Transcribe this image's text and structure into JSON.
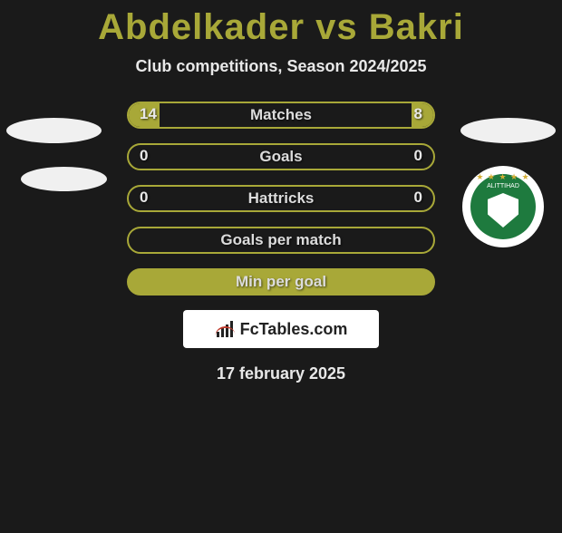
{
  "title": "Abdelkader vs Bakri",
  "subtitle": "Club competitions, Season 2024/2025",
  "date": "17 february 2025",
  "logo_text": "FcTables.com",
  "club_name": "ALITTIHAD",
  "colors": {
    "accent": "#a8a838",
    "background": "#1a1a1a",
    "text": "#e8e8e8",
    "club_green": "#1e7a3e",
    "club_gold": "#d4af37"
  },
  "rows": [
    {
      "label": "Matches",
      "left": "14",
      "right": "8",
      "left_pct": 10,
      "right_pct": 7,
      "show_vals": true
    },
    {
      "label": "Goals",
      "left": "0",
      "right": "0",
      "left_pct": 0,
      "right_pct": 0,
      "show_vals": true
    },
    {
      "label": "Hattricks",
      "left": "0",
      "right": "0",
      "left_pct": 0,
      "right_pct": 0,
      "show_vals": true
    },
    {
      "label": "Goals per match",
      "left": "",
      "right": "",
      "left_pct": 0,
      "right_pct": 0,
      "show_vals": false
    },
    {
      "label": "Min per goal",
      "left": "",
      "right": "",
      "full": true,
      "show_vals": false
    }
  ]
}
